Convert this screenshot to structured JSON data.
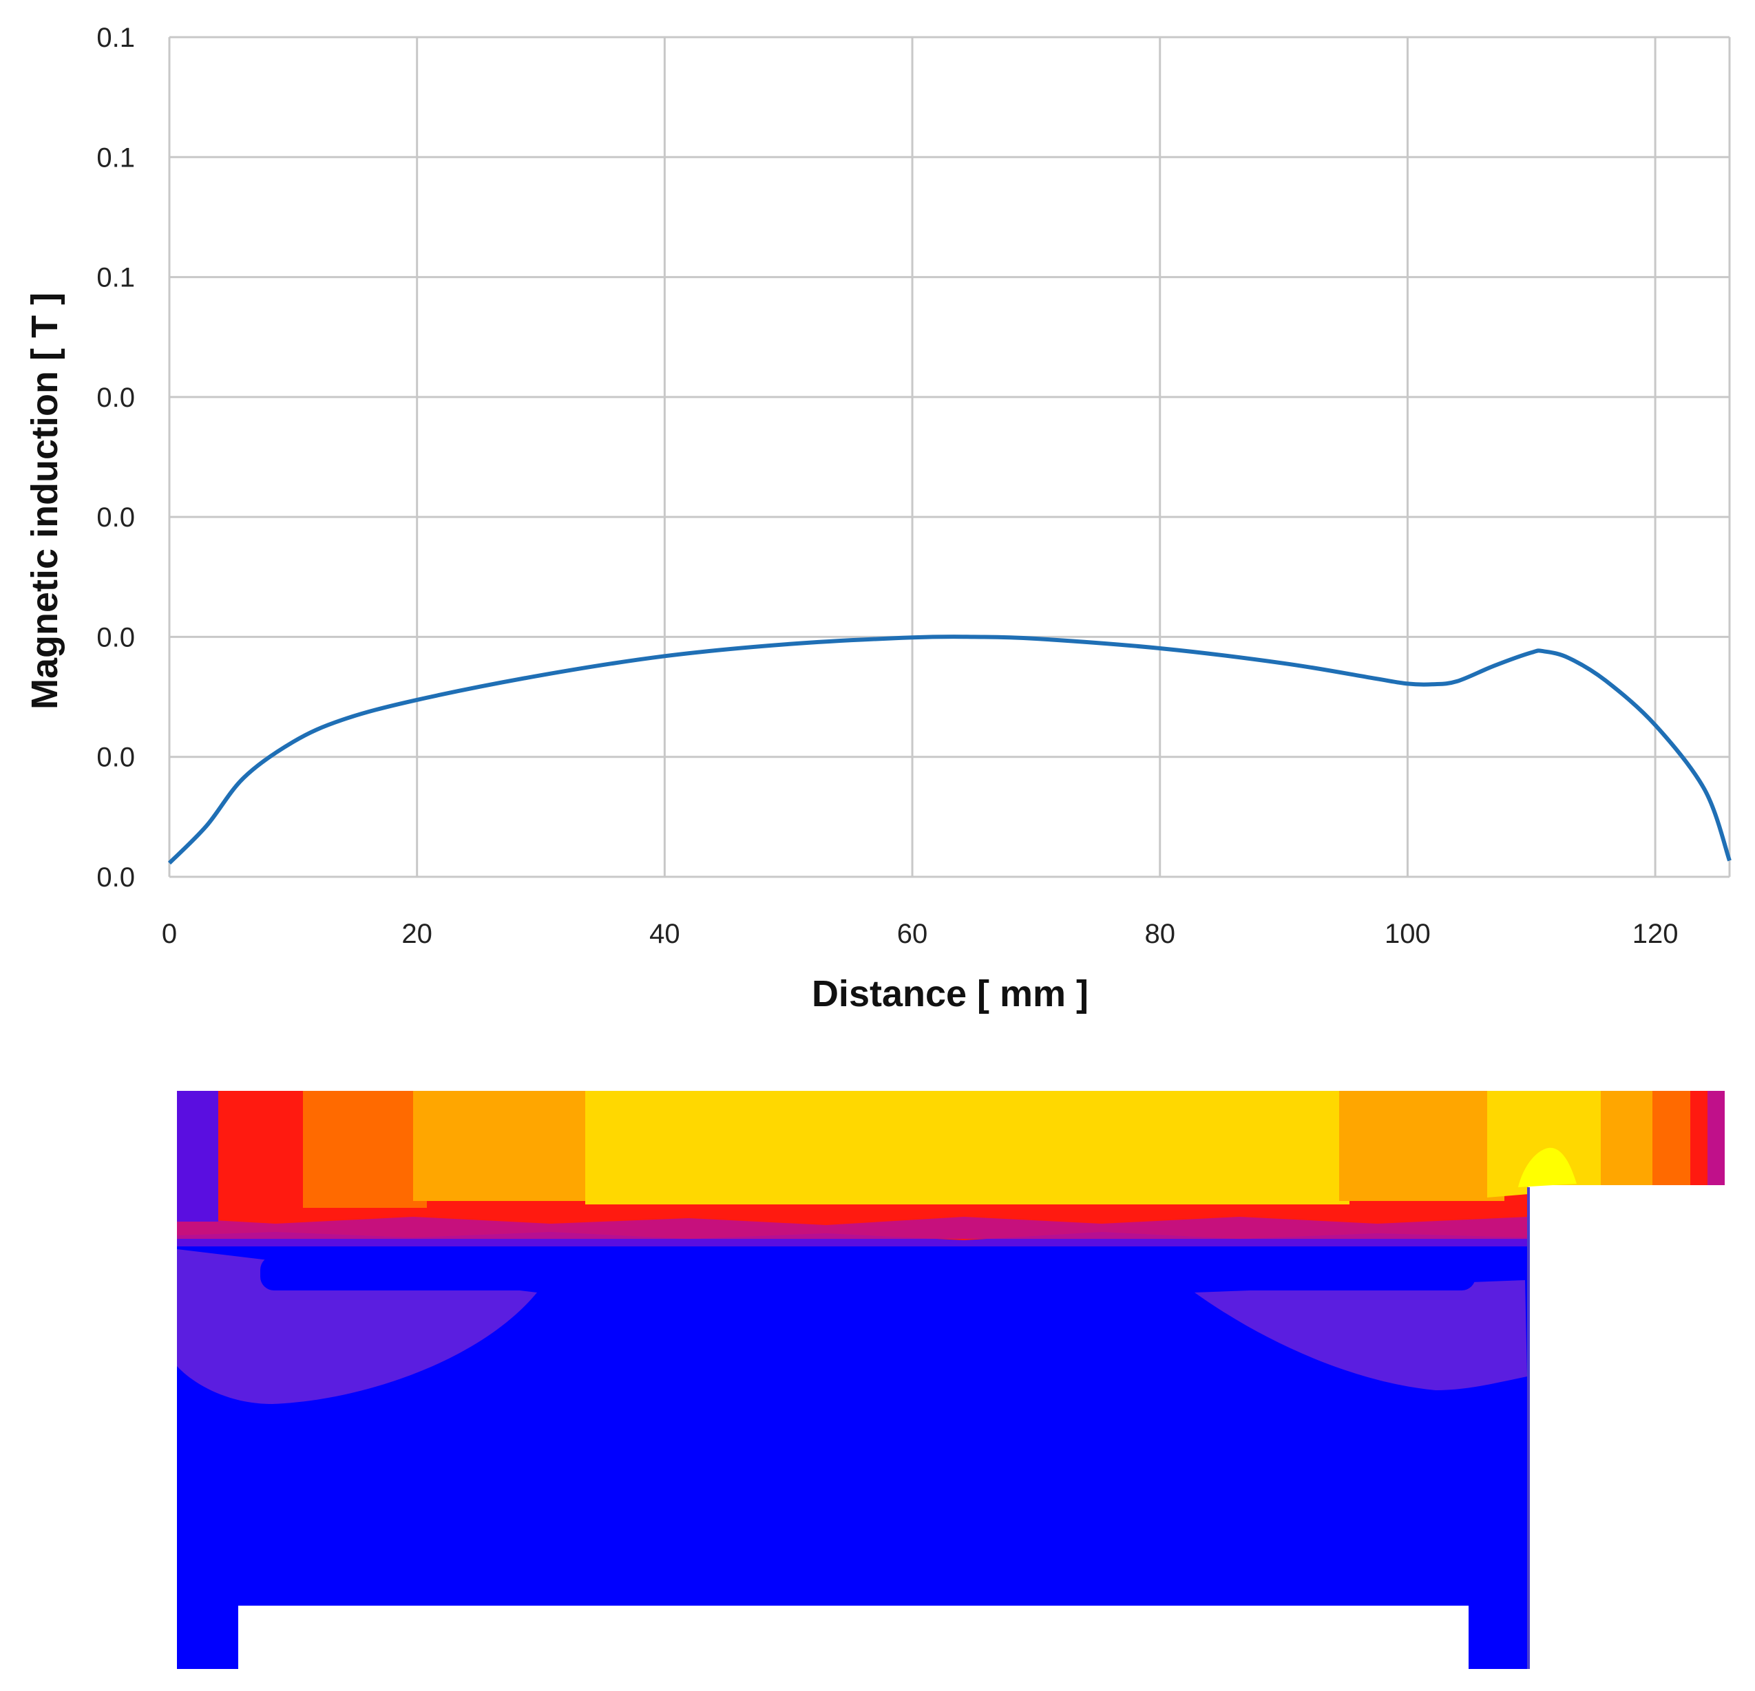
{
  "chart_data": {
    "type": "line",
    "xlabel": "Distance [ mm ]",
    "ylabel": "Magnetic induction [ T ]",
    "x_ticks": [
      "0",
      "20",
      "40",
      "60",
      "80",
      "100",
      "120"
    ],
    "y_ticks": [
      "0.0",
      "0.0",
      "0.0",
      "0.0",
      "0.0",
      "0.1",
      "0.1",
      "0.1"
    ],
    "xlim": [
      0,
      126
    ],
    "ylim": [
      0,
      0.14
    ],
    "grid": true,
    "line_color": "#1f6fb5",
    "series": [
      {
        "x": [
          0,
          3,
          6,
          10,
          14,
          20,
          30,
          40,
          50,
          60,
          65,
          70,
          80,
          90,
          97,
          100,
          102,
          104,
          107,
          110,
          111,
          113,
          116,
          120,
          124,
          126
        ],
        "y": [
          0.0023,
          0.0085,
          0.0165,
          0.0225,
          0.0262,
          0.0295,
          0.0336,
          0.0368,
          0.0388,
          0.0399,
          0.04,
          0.0397,
          0.0381,
          0.0356,
          0.0332,
          0.0322,
          0.0321,
          0.0326,
          0.0352,
          0.0374,
          0.0376,
          0.0365,
          0.0327,
          0.0253,
          0.0145,
          0.0027
        ]
      }
    ]
  },
  "field_map": {
    "colors": {
      "violet": "#5a0ee0",
      "magenta": "#c0108a",
      "red": "#ff1a10",
      "dark_orange": "#ff6a00",
      "orange": "#ffa600",
      "yellow": "#ffd800",
      "light_yellow": "#ffff00",
      "blue": "#0000ff",
      "purple": "#5b1ee0"
    }
  }
}
